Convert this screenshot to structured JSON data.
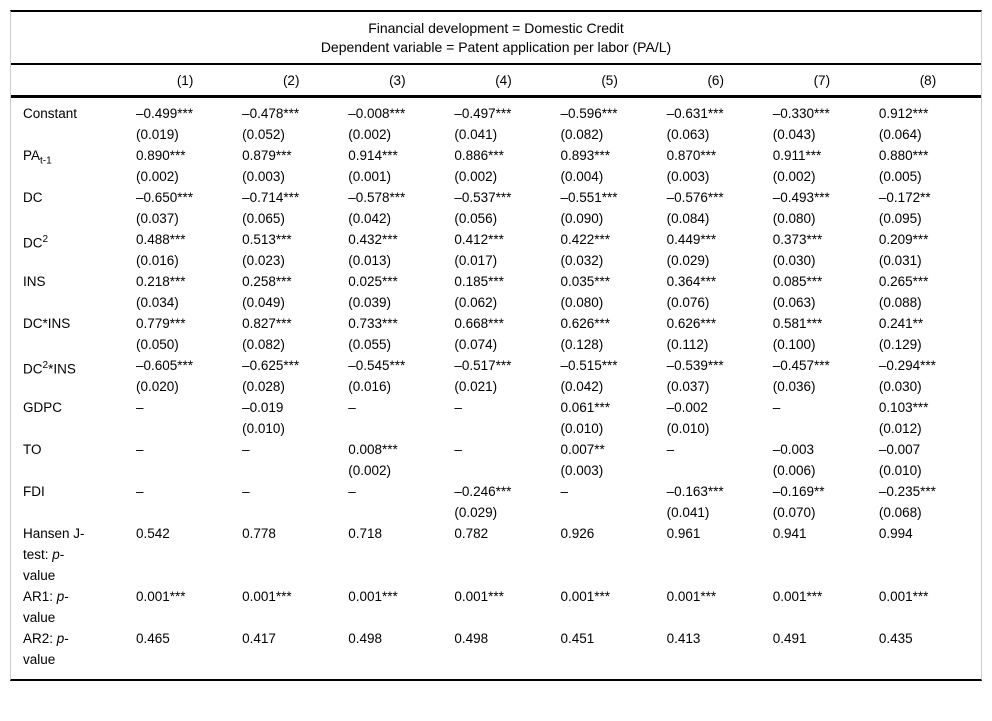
{
  "table": {
    "title_line1": "Financial development = Domestic Credit",
    "title_line2": "Dependent variable = Patent application per labor (PA/L)",
    "column_headers": [
      "(1)",
      "(2)",
      "(3)",
      "(4)",
      "(5)",
      "(6)",
      "(7)",
      "(8)"
    ],
    "rows": [
      {
        "id": "constant",
        "label": [
          {
            "t": "Constant"
          }
        ],
        "cells": [
          [
            "–0.499***",
            "(0.019)"
          ],
          [
            "–0.478***",
            "(0.052)"
          ],
          [
            "–0.008***",
            "(0.002)"
          ],
          [
            "–0.497***",
            "(0.041)"
          ],
          [
            "–0.596***",
            "(0.082)"
          ],
          [
            "–0.631***",
            "(0.063)"
          ],
          [
            "–0.330***",
            "(0.043)"
          ],
          [
            "0.912***",
            "(0.064)"
          ]
        ]
      },
      {
        "id": "pa-lag",
        "label": [
          {
            "t": "PA"
          },
          {
            "t": "t-1",
            "style": "sub"
          }
        ],
        "cells": [
          [
            "0.890***",
            "(0.002)"
          ],
          [
            "0.879***",
            "(0.003)"
          ],
          [
            "0.914***",
            "(0.001)"
          ],
          [
            "0.886***",
            "(0.002)"
          ],
          [
            "0.893***",
            "(0.004)"
          ],
          [
            "0.870***",
            "(0.003)"
          ],
          [
            "0.911***",
            "(0.002)"
          ],
          [
            "0.880***",
            "(0.005)"
          ]
        ]
      },
      {
        "id": "dc",
        "label": [
          {
            "t": "DC"
          }
        ],
        "cells": [
          [
            "–0.650***",
            "(0.037)"
          ],
          [
            "–0.714***",
            "(0.065)"
          ],
          [
            "–0.578***",
            "(0.042)"
          ],
          [
            "–0.537***",
            "(0.056)"
          ],
          [
            "–0.551***",
            "(0.090)"
          ],
          [
            "–0.576***",
            "(0.084)"
          ],
          [
            "–0.493***",
            "(0.080)"
          ],
          [
            "–0.172**",
            "(0.095)"
          ]
        ]
      },
      {
        "id": "dc2",
        "label": [
          {
            "t": "DC"
          },
          {
            "t": "2",
            "style": "sup"
          }
        ],
        "cells": [
          [
            "0.488***",
            "(0.016)"
          ],
          [
            "0.513***",
            "(0.023)"
          ],
          [
            "0.432***",
            "(0.013)"
          ],
          [
            "0.412***",
            "(0.017)"
          ],
          [
            "0.422***",
            "(0.032)"
          ],
          [
            "0.449***",
            "(0.029)"
          ],
          [
            "0.373***",
            "(0.030)"
          ],
          [
            "0.209***",
            "(0.031)"
          ]
        ]
      },
      {
        "id": "ins",
        "label": [
          {
            "t": "INS"
          }
        ],
        "cells": [
          [
            "0.218***",
            "(0.034)"
          ],
          [
            "0.258***",
            "(0.049)"
          ],
          [
            "0.025***",
            "(0.039)"
          ],
          [
            "0.185***",
            "(0.062)"
          ],
          [
            "0.035***",
            "(0.080)"
          ],
          [
            "0.364***",
            "(0.076)"
          ],
          [
            "0.085***",
            "(0.063)"
          ],
          [
            "0.265***",
            "(0.088)"
          ]
        ]
      },
      {
        "id": "dc-ins",
        "label": [
          {
            "t": "DC*INS"
          }
        ],
        "cells": [
          [
            "0.779***",
            "(0.050)"
          ],
          [
            "0.827***",
            "(0.082)"
          ],
          [
            "0.733***",
            "(0.055)"
          ],
          [
            "0.668***",
            "(0.074)"
          ],
          [
            "0.626***",
            "(0.128)"
          ],
          [
            "0.626***",
            "(0.112)"
          ],
          [
            "0.581***",
            "(0.100)"
          ],
          [
            "0.241**",
            "(0.129)"
          ]
        ]
      },
      {
        "id": "dc2-ins",
        "label": [
          {
            "t": "DC"
          },
          {
            "t": "2",
            "style": "sup"
          },
          {
            "t": "*INS"
          }
        ],
        "cells": [
          [
            "–0.605***",
            "(0.020)"
          ],
          [
            "–0.625***",
            "(0.028)"
          ],
          [
            "–0.545***",
            "(0.016)"
          ],
          [
            "–0.517***",
            "(0.021)"
          ],
          [
            "–0.515***",
            "(0.042)"
          ],
          [
            "–0.539***",
            "(0.037)"
          ],
          [
            "–0.457***",
            "(0.036)"
          ],
          [
            "–0.294***",
            "(0.030)"
          ]
        ]
      },
      {
        "id": "gdpc",
        "label": [
          {
            "t": "GDPC"
          }
        ],
        "cells": [
          [
            "–",
            ""
          ],
          [
            "–0.019",
            "(0.010)"
          ],
          [
            "–",
            ""
          ],
          [
            "–",
            ""
          ],
          [
            "0.061***",
            "(0.010)"
          ],
          [
            "–0.002",
            "(0.010)"
          ],
          [
            "–",
            ""
          ],
          [
            "0.103***",
            "(0.012)"
          ]
        ]
      },
      {
        "id": "to",
        "label": [
          {
            "t": "TO"
          }
        ],
        "cells": [
          [
            "–",
            ""
          ],
          [
            "–",
            ""
          ],
          [
            "0.008***",
            "(0.002)"
          ],
          [
            "–",
            ""
          ],
          [
            "0.007**",
            "(0.003)"
          ],
          [
            "–",
            ""
          ],
          [
            "–0.003",
            "(0.006)"
          ],
          [
            "–0.007",
            "(0.010)"
          ]
        ]
      },
      {
        "id": "fdi",
        "label": [
          {
            "t": "FDI"
          }
        ],
        "cells": [
          [
            "–",
            ""
          ],
          [
            "–",
            ""
          ],
          [
            "–",
            ""
          ],
          [
            "–0.246***",
            "(0.029)"
          ],
          [
            "–",
            ""
          ],
          [
            "–0.163***",
            "(0.041)"
          ],
          [
            "–0.169**",
            "(0.070)"
          ],
          [
            "–0.235***",
            "(0.068)"
          ]
        ]
      },
      {
        "id": "hansen-j-test",
        "label": [
          {
            "t": "Hansen J-test: "
          },
          {
            "t": "p",
            "style": "i"
          },
          {
            "t": "-value"
          }
        ],
        "cells": [
          [
            "0.542",
            ""
          ],
          [
            "0.778",
            ""
          ],
          [
            "0.718",
            ""
          ],
          [
            "0.782",
            ""
          ],
          [
            "0.926",
            ""
          ],
          [
            "0.961",
            ""
          ],
          [
            "0.941",
            ""
          ],
          [
            "0.994",
            ""
          ]
        ]
      },
      {
        "id": "ar1",
        "label": [
          {
            "t": "AR1: "
          },
          {
            "t": "p",
            "style": "i"
          },
          {
            "t": "-value"
          }
        ],
        "cells": [
          [
            "0.001***",
            ""
          ],
          [
            "0.001***",
            ""
          ],
          [
            "0.001***",
            ""
          ],
          [
            "0.001***",
            ""
          ],
          [
            "0.001***",
            ""
          ],
          [
            "0.001***",
            ""
          ],
          [
            "0.001***",
            ""
          ],
          [
            "0.001***",
            ""
          ]
        ]
      },
      {
        "id": "ar2",
        "label": [
          {
            "t": "AR2: "
          },
          {
            "t": "p",
            "style": "i"
          },
          {
            "t": "-value"
          }
        ],
        "cells": [
          [
            "0.465",
            ""
          ],
          [
            "0.417",
            ""
          ],
          [
            "0.498",
            ""
          ],
          [
            "0.498",
            ""
          ],
          [
            "0.451",
            ""
          ],
          [
            "0.413",
            ""
          ],
          [
            "0.491",
            ""
          ],
          [
            "0.435",
            ""
          ]
        ]
      }
    ]
  }
}
